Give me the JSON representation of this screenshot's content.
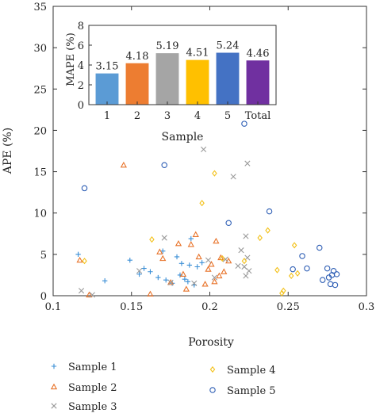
{
  "chart_data": [
    {
      "type": "scatter",
      "title": "",
      "xlabel": "Porosity",
      "ylabel": "APE (%)",
      "xlim": [
        0.1,
        0.3
      ],
      "ylim": [
        0,
        35
      ],
      "xticks": [
        "0.1",
        "0.15",
        "0.2",
        "0.25",
        "0.3"
      ],
      "yticks": [
        "0",
        "5",
        "10",
        "15",
        "20",
        "25",
        "30",
        "35"
      ],
      "grid": false,
      "legend": "bottom",
      "series": [
        {
          "name": "Sample 1",
          "marker": "plus",
          "color": "#3b8fd6",
          "points": [
            [
              0.116,
              5.0
            ],
            [
              0.133,
              1.8
            ],
            [
              0.149,
              4.3
            ],
            [
              0.155,
              2.6
            ],
            [
              0.158,
              3.3
            ],
            [
              0.162,
              2.9
            ],
            [
              0.167,
              2.2
            ],
            [
              0.17,
              5.4
            ],
            [
              0.172,
              1.9
            ],
            [
              0.176,
              1.5
            ],
            [
              0.179,
              4.7
            ],
            [
              0.181,
              2.5
            ],
            [
              0.182,
              3.9
            ],
            [
              0.184,
              2.0
            ],
            [
              0.186,
              1.7
            ],
            [
              0.187,
              3.7
            ],
            [
              0.188,
              6.9
            ],
            [
              0.19,
              1.3
            ],
            [
              0.192,
              3.5
            ],
            [
              0.195,
              4.0
            ]
          ]
        },
        {
          "name": "Sample 2",
          "marker": "triangle",
          "color": "#e8732a",
          "points": [
            [
              0.117,
              4.3
            ],
            [
              0.123,
              0.1
            ],
            [
              0.145,
              15.8
            ],
            [
              0.162,
              0.2
            ],
            [
              0.168,
              5.3
            ],
            [
              0.17,
              4.5
            ],
            [
              0.175,
              1.6
            ],
            [
              0.18,
              6.3
            ],
            [
              0.183,
              2.6
            ],
            [
              0.185,
              0.8
            ],
            [
              0.188,
              6.2
            ],
            [
              0.191,
              7.4
            ],
            [
              0.193,
              4.7
            ],
            [
              0.197,
              1.4
            ],
            [
              0.199,
              3.2
            ],
            [
              0.201,
              3.8
            ],
            [
              0.203,
              1.7
            ],
            [
              0.204,
              6.6
            ],
            [
              0.206,
              2.4
            ],
            [
              0.207,
              4.6
            ],
            [
              0.209,
              2.9
            ],
            [
              0.212,
              4.2
            ]
          ]
        },
        {
          "name": "Sample 3",
          "marker": "x",
          "color": "#9a9a9a",
          "points": [
            [
              0.118,
              0.6
            ],
            [
              0.125,
              0.1
            ],
            [
              0.155,
              3.0
            ],
            [
              0.171,
              7.0
            ],
            [
              0.175,
              1.6
            ],
            [
              0.19,
              1.5
            ],
            [
              0.196,
              17.7
            ],
            [
              0.199,
              4.3
            ],
            [
              0.203,
              2.2
            ],
            [
              0.21,
              4.4
            ],
            [
              0.215,
              14.4
            ],
            [
              0.218,
              3.6
            ],
            [
              0.22,
              5.5
            ],
            [
              0.222,
              3.5
            ],
            [
              0.223,
              7.2
            ],
            [
              0.223,
              2.4
            ],
            [
              0.224,
              16.0
            ],
            [
              0.224,
              4.6
            ],
            [
              0.225,
              3.0
            ]
          ]
        },
        {
          "name": "Sample 4",
          "marker": "diamond",
          "color": "#f3c11a",
          "points": [
            [
              0.12,
              4.2
            ],
            [
              0.163,
              6.8
            ],
            [
              0.195,
              11.2
            ],
            [
              0.203,
              14.8
            ],
            [
              0.208,
              4.5
            ],
            [
              0.222,
              4.2
            ],
            [
              0.232,
              7.0
            ],
            [
              0.237,
              7.9
            ],
            [
              0.243,
              3.1
            ],
            [
              0.246,
              0.3
            ],
            [
              0.247,
              0.6
            ],
            [
              0.252,
              2.4
            ],
            [
              0.254,
              6.1
            ],
            [
              0.256,
              2.7
            ]
          ]
        },
        {
          "name": "Sample 5",
          "marker": "circle",
          "color": "#2f5fb5",
          "points": [
            [
              0.12,
              13.0
            ],
            [
              0.171,
              15.8
            ],
            [
              0.212,
              8.8
            ],
            [
              0.222,
              20.8
            ],
            [
              0.238,
              10.2
            ],
            [
              0.253,
              3.2
            ],
            [
              0.259,
              4.8
            ],
            [
              0.262,
              3.3
            ],
            [
              0.27,
              5.8
            ],
            [
              0.272,
              1.9
            ],
            [
              0.275,
              3.3
            ],
            [
              0.276,
              2.2
            ],
            [
              0.277,
              1.4
            ],
            [
              0.278,
              2.5
            ],
            [
              0.279,
              3.0
            ],
            [
              0.28,
              1.3
            ],
            [
              0.281,
              2.6
            ]
          ]
        }
      ]
    },
    {
      "type": "bar",
      "title": "",
      "xlabel": "Sample",
      "ylabel": "MAPE (%)",
      "ylim": [
        0,
        8
      ],
      "yticks": [
        "0",
        "2",
        "4",
        "6",
        "8"
      ],
      "categories": [
        "1",
        "2",
        "3",
        "4",
        "5",
        "Total"
      ],
      "values": [
        3.15,
        4.18,
        5.19,
        4.51,
        5.24,
        4.46
      ],
      "labels": [
        "3.15",
        "4.18",
        "5.19",
        "4.51",
        "5.24",
        "4.46"
      ],
      "colors": [
        "#5b9bd5",
        "#ed7d31",
        "#a5a5a5",
        "#ffc000",
        "#4472c4",
        "#7030a0"
      ]
    }
  ]
}
